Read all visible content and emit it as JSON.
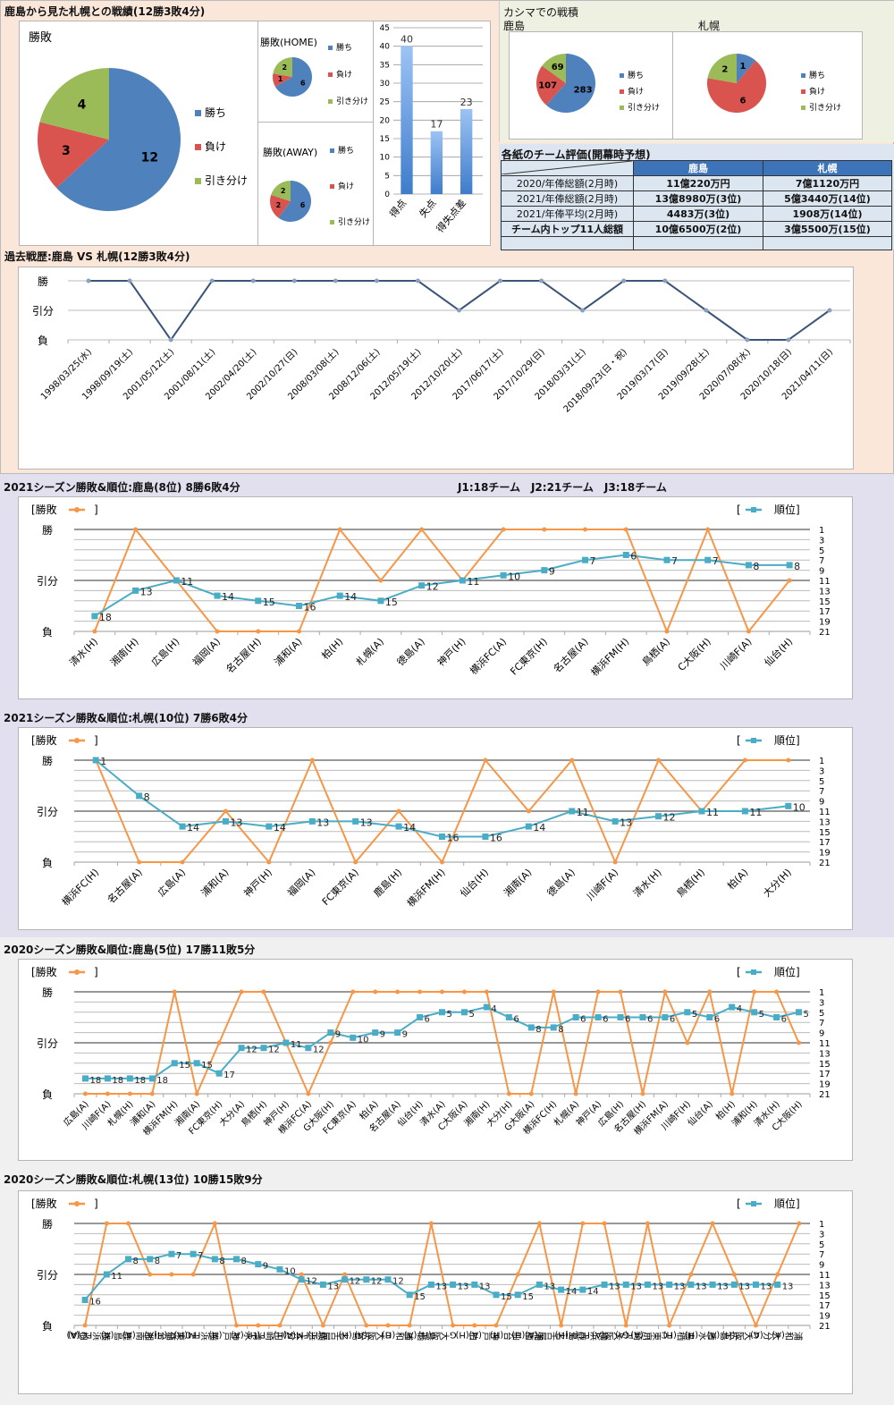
{
  "colors": {
    "win": "#4f81bd",
    "loss": "#d9534f",
    "draw": "#9bbb59",
    "result_line": "#f79646",
    "rank_line": "#4bacc6",
    "history_line": "#3b5576",
    "table_header": "#3d73b8"
  },
  "section_top": {
    "title": "鹿島から見た札幌との戦績(12勝3敗4分)",
    "pie_total": {
      "title": "勝敗",
      "legend": [
        "勝ち",
        "負け",
        "引き分け"
      ],
      "values": [
        12,
        3,
        4
      ]
    },
    "pie_home": {
      "title": "勝敗(HOME)",
      "legend": [
        "勝ち",
        "負け",
        "引き分け"
      ],
      "values": [
        6,
        1,
        2
      ]
    },
    "pie_away": {
      "title": "勝敗(AWAY)",
      "legend": [
        "勝ち",
        "負け",
        "引き分け"
      ],
      "values": [
        6,
        2,
        2
      ]
    },
    "goals_bar": {
      "categories": [
        "得点",
        "失点",
        "得失点差"
      ],
      "values": [
        40,
        17,
        23
      ],
      "yticks": [
        0,
        5,
        10,
        15,
        20,
        25,
        30,
        35,
        40,
        45
      ]
    }
  },
  "kashima_stadium": {
    "title": "カシマでの戦積",
    "kashima": {
      "label": "鹿島",
      "legend": [
        "勝ち",
        "負け",
        "引き分け"
      ],
      "values": [
        283,
        107,
        69
      ]
    },
    "sapporo": {
      "label": "札幌",
      "legend": [
        "勝ち",
        "負け",
        "引き分け"
      ],
      "values": [
        1,
        6,
        2
      ]
    }
  },
  "evaluation": {
    "title": "各紙のチーム評価(開幕時予想)",
    "headers": [
      "",
      "鹿島",
      "札幌"
    ],
    "rows": [
      [
        "2020/年俸総額(2月時)",
        "11億220万円",
        "7億1120万円"
      ],
      [
        "2021/年俸総額(2月時)",
        "13億8980万(3位)",
        "5億3440万(14位)"
      ],
      [
        "2021/年俸平均(2月時)",
        "4483万(3位)",
        "1908万(14位)"
      ],
      [
        "チーム内トップ11人総額",
        "10億6500万(2位)",
        "3億5500万(15位)"
      ],
      [
        "",
        "",
        ""
      ]
    ]
  },
  "history": {
    "title": "過去戦歴:鹿島 VS 札幌(12勝3敗4分)",
    "ylabels": [
      "勝",
      "引分",
      "負"
    ]
  },
  "section_2021k": {
    "title": "2021シーズン勝敗&順位:鹿島(8位) 8勝6敗4分",
    "note": "J1:18チーム　J2:21チーム　J3:18チーム"
  },
  "section_2021s": {
    "title": "2021シーズン勝敗&順位:札幌(10位) 7勝6敗4分"
  },
  "section_2020k": {
    "title": "2020シーズン勝敗&順位:鹿島(5位) 17勝11敗5分"
  },
  "section_2020s": {
    "title": "2020シーズン勝敗&順位:札幌(13位) 10勝15敗9分"
  },
  "legend": {
    "result": "[勝敗",
    "result_close": "]",
    "rank_open": "[",
    "rank": "順位]"
  },
  "chart_data": [
    {
      "type": "pie",
      "title": "勝敗",
      "labels": [
        "勝ち",
        "負け",
        "引き分け"
      ],
      "values": [
        12,
        3,
        4
      ]
    },
    {
      "type": "pie",
      "title": "勝敗(HOME)",
      "labels": [
        "勝ち",
        "負け",
        "引き分け"
      ],
      "values": [
        6,
        1,
        2
      ]
    },
    {
      "type": "pie",
      "title": "勝敗(AWAY)",
      "labels": [
        "勝ち",
        "負け",
        "引き分け"
      ],
      "values": [
        6,
        2,
        2
      ]
    },
    {
      "type": "bar",
      "categories": [
        "得点",
        "失点",
        "得失点差"
      ],
      "values": [
        40,
        17,
        23
      ],
      "ylim": [
        0,
        45
      ]
    },
    {
      "type": "pie",
      "title": "カシマでの戦積 鹿島",
      "labels": [
        "勝ち",
        "負け",
        "引き分け"
      ],
      "values": [
        283,
        107,
        69
      ]
    },
    {
      "type": "pie",
      "title": "カシマでの戦積 札幌",
      "labels": [
        "勝ち",
        "負け",
        "引き分け"
      ],
      "values": [
        1,
        6,
        2
      ]
    },
    {
      "type": "line",
      "title": "過去戦歴:鹿島 VS 札幌(12勝3敗4分)",
      "yticks": [
        "勝",
        "引分",
        "負"
      ],
      "x": [
        "1998/03/25(水)",
        "1998/09/19(土)",
        "2001/05/12(土)",
        "2001/08/11(土)",
        "2002/04/20(土)",
        "2002/10/27(日)",
        "2008/03/08(土)",
        "2008/12/06(土)",
        "2012/05/19(土)",
        "2012/10/20(土)",
        "2017/06/17(土)",
        "2017/10/29(日)",
        "2018/03/31(土)",
        "2018/09/23(日・祝)",
        "2019/03/17(日)",
        "2019/09/28(土)",
        "2020/07/08(水)",
        "2020/10/18(日)",
        "2021/04/11(日)"
      ],
      "results": [
        "W",
        "W",
        "L",
        "W",
        "W",
        "W",
        "W",
        "W",
        "W",
        "D",
        "W",
        "W",
        "D",
        "W",
        "W",
        "D",
        "L",
        "L",
        "D"
      ]
    },
    {
      "type": "line",
      "title": "2021シーズン勝敗&順位:鹿島(8位) 8勝6敗4分",
      "y2ticks": [
        1,
        3,
        5,
        7,
        9,
        11,
        13,
        15,
        17,
        19,
        21
      ],
      "x": [
        "清水(H)",
        "湘南(H)",
        "広島(H)",
        "福岡(A)",
        "名古屋(H)",
        "浦和(A)",
        "柏(H)",
        "札幌(A)",
        "徳島(A)",
        "神戸(H)",
        "横浜FC(A)",
        "FC東京(H)",
        "名古屋(A)",
        "横浜FM(H)",
        "鳥栖(A)",
        "C大阪(H)",
        "川崎F(A)",
        "仙台(H)"
      ],
      "series": [
        {
          "name": "勝敗",
          "values": [
            "L",
            "W",
            "D",
            "L",
            "L",
            "L",
            "W",
            "D",
            "W",
            "D",
            "W",
            "W",
            "W",
            "W",
            "L",
            "W",
            "L",
            "D"
          ]
        },
        {
          "name": "順位",
          "values": [
            18,
            13,
            11,
            14,
            15,
            16,
            14,
            15,
            12,
            11,
            10,
            9,
            7,
            6,
            7,
            7,
            8,
            8
          ]
        }
      ]
    },
    {
      "type": "line",
      "title": "2021シーズン勝敗&順位:札幌(10位) 7勝6敗4分",
      "y2ticks": [
        1,
        3,
        5,
        7,
        9,
        11,
        13,
        15,
        17,
        19,
        21
      ],
      "x": [
        "横浜FC(H)",
        "名古屋(A)",
        "広島(A)",
        "浦和(A)",
        "神戸(H)",
        "福岡(A)",
        "FC東京(A)",
        "鹿島(H)",
        "横浜FM(H)",
        "仙台(H)",
        "湘南(A)",
        "徳島(A)",
        "川崎F(A)",
        "清水(H)",
        "鳥栖(H)",
        "柏(A)",
        "大分(H)"
      ],
      "series": [
        {
          "name": "勝敗",
          "values": [
            "W",
            "L",
            "L",
            "D",
            "L",
            "W",
            "L",
            "D",
            "L",
            "W",
            "D",
            "W",
            "L",
            "W",
            "D",
            "W",
            "W"
          ]
        },
        {
          "name": "順位",
          "values": [
            1,
            8,
            14,
            13,
            14,
            13,
            13,
            14,
            16,
            16,
            14,
            11,
            13,
            12,
            11,
            11,
            10
          ]
        }
      ]
    },
    {
      "type": "line",
      "title": "2020シーズン勝敗&順位:鹿島(5位) 17勝11敗5分",
      "y2ticks": [
        1,
        3,
        5,
        7,
        9,
        11,
        13,
        15,
        17,
        19,
        21
      ],
      "x": [
        "広島(A)",
        "川崎F(A)",
        "札幌(H)",
        "浦和(A)",
        "横浜FM(H)",
        "湘南(A)",
        "FC東京(H)",
        "大分(A)",
        "鳥栖(H)",
        "神戸(H)",
        "横浜FC(A)",
        "G大阪(H)",
        "FC東京(A)",
        "柏(A)",
        "名古屋(A)",
        "仙台(H)",
        "清水(A)",
        "C大阪(A)",
        "湘南(H)",
        "大分(H)",
        "G大阪(A)",
        "横浜FC(H)",
        "札幌(A)",
        "神戸(A)",
        "広島(H)",
        "名古屋(H)",
        "横浜FM(A)",
        "川崎F(H)",
        "仙台(A)",
        "柏(H)",
        "浦和(H)",
        "清水(H)",
        "C大阪(H)"
      ],
      "series": [
        {
          "name": "勝敗",
          "values": [
            "L",
            "L",
            "L",
            "L",
            "W",
            "L",
            "D",
            "W",
            "W",
            "D",
            "L",
            "D",
            "W",
            "W",
            "W",
            "W",
            "W",
            "W",
            "W",
            "L",
            "L",
            "W",
            "L",
            "W",
            "W",
            "L",
            "W",
            "D",
            "W",
            "L",
            "W",
            "W",
            "D"
          ]
        },
        {
          "name": "順位",
          "values": [
            18,
            18,
            18,
            18,
            15,
            15,
            17,
            12,
            12,
            11,
            12,
            9,
            10,
            9,
            9,
            6,
            5,
            5,
            4,
            6,
            8,
            8,
            6,
            6,
            6,
            6,
            6,
            5,
            6,
            4,
            5,
            6,
            5
          ]
        }
      ]
    },
    {
      "type": "line",
      "title": "2020シーズン勝敗&順位:札幌(13位) 10勝15敗9分",
      "y2ticks": [
        1,
        3,
        5,
        7,
        9,
        11,
        13,
        15,
        17,
        19,
        21
      ],
      "x": [
        "柏(A)",
        "横浜FC(A)",
        "鹿島(A)",
        "湘南(A)",
        "仙台(A)",
        "FC東京(H)",
        "横浜FM(H)",
        "神戸(H)",
        "清水(A)",
        "川崎F(H)",
        "大分(H)",
        "横浜FM(A)",
        "名古屋(H)",
        "広島(H)",
        "C大阪(A)",
        "浦和(H)",
        "鳥栖(A)",
        "G大阪(H)",
        "柏(H)",
        "神戸(A)",
        "仙台(H)",
        "湘南(H)",
        "名古屋(A)",
        "鹿島(H)",
        "横浜FC(H)",
        "G大阪(A)",
        "川崎F(A)",
        "FC東京(A)",
        "鳥栖(H)",
        "清水(H)",
        "広島(A)",
        "C大阪(H)",
        "大分(A)",
        "浦和(A)"
      ],
      "series": [
        {
          "name": "勝敗",
          "values": [
            "L",
            "W",
            "W",
            "D",
            "D",
            "D",
            "W",
            "L",
            "L",
            "L",
            "D",
            "L",
            "D",
            "L",
            "L",
            "L",
            "W",
            "L",
            "L",
            "L",
            "D",
            "W",
            "L",
            "W",
            "W",
            "L",
            "W",
            "L",
            "D",
            "W",
            "D",
            "L",
            "D",
            "W"
          ]
        },
        {
          "name": "順位",
          "values": [
            16,
            11,
            8,
            8,
            7,
            7,
            8,
            8,
            9,
            10,
            12,
            13,
            12,
            12,
            12,
            15,
            13,
            13,
            13,
            15,
            15,
            13,
            14,
            14,
            13,
            13,
            13,
            13,
            13,
            13,
            13,
            13,
            13,
            null
          ]
        }
      ]
    }
  ]
}
